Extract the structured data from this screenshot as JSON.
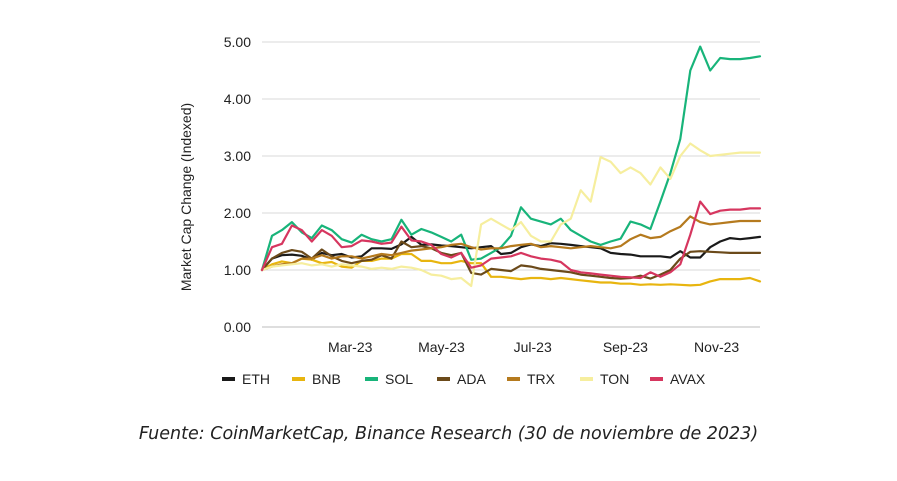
{
  "caption": "Fuente: CoinMarketCap, Binance Research (30 de noviembre de 2023)",
  "chart_data": {
    "type": "line",
    "ylabel": "Market Cap Change (Indexed)",
    "ylim": [
      0,
      5
    ],
    "yticks": [
      "0.00",
      "1.00",
      "2.00",
      "3.00",
      "4.00",
      "5.00"
    ],
    "x_start": "2023-01-01",
    "x_end": "2023-11-30",
    "x_period": "weekly",
    "xtick_labels": [
      {
        "date": "2023-03-01",
        "label": "Mar-23"
      },
      {
        "date": "2023-05-01",
        "label": "May-23"
      },
      {
        "date": "2023-07-01",
        "label": "Jul-23"
      },
      {
        "date": "2023-09-01",
        "label": "Sep-23"
      },
      {
        "date": "2023-11-01",
        "label": "Nov-23"
      }
    ],
    "grid": "horizontal",
    "legend": "bottom",
    "series": [
      {
        "name": "ETH",
        "color": "#1a1a1a",
        "values": [
          1.0,
          1.2,
          1.26,
          1.27,
          1.25,
          1.18,
          1.3,
          1.26,
          1.28,
          1.22,
          1.24,
          1.38,
          1.38,
          1.37,
          1.45,
          1.58,
          1.44,
          1.45,
          1.43,
          1.42,
          1.4,
          1.38,
          1.4,
          1.42,
          1.28,
          1.3,
          1.4,
          1.45,
          1.42,
          1.47,
          1.46,
          1.44,
          1.42,
          1.4,
          1.38,
          1.3,
          1.28,
          1.27,
          1.24,
          1.24,
          1.24,
          1.22,
          1.33,
          1.22,
          1.22,
          1.4,
          1.5,
          1.56,
          1.54,
          1.56,
          1.58
        ]
      },
      {
        "name": "BNB",
        "color": "#e8b50f",
        "values": [
          1.0,
          1.1,
          1.15,
          1.12,
          1.2,
          1.18,
          1.12,
          1.14,
          1.06,
          1.04,
          1.16,
          1.16,
          1.2,
          1.2,
          1.28,
          1.28,
          1.16,
          1.16,
          1.12,
          1.12,
          1.16,
          1.12,
          1.12,
          0.88,
          0.88,
          0.86,
          0.84,
          0.86,
          0.86,
          0.84,
          0.86,
          0.84,
          0.82,
          0.8,
          0.78,
          0.78,
          0.76,
          0.76,
          0.74,
          0.75,
          0.74,
          0.75,
          0.74,
          0.73,
          0.74,
          0.8,
          0.84,
          0.84,
          0.84,
          0.86,
          0.8
        ]
      },
      {
        "name": "SOL",
        "color": "#18b47a",
        "values": [
          1.0,
          1.6,
          1.7,
          1.84,
          1.66,
          1.56,
          1.78,
          1.7,
          1.54,
          1.48,
          1.62,
          1.54,
          1.5,
          1.54,
          1.88,
          1.62,
          1.72,
          1.66,
          1.58,
          1.5,
          1.62,
          1.18,
          1.2,
          1.3,
          1.4,
          1.6,
          2.1,
          1.9,
          1.85,
          1.8,
          1.9,
          1.7,
          1.6,
          1.5,
          1.44,
          1.5,
          1.55,
          1.85,
          1.8,
          1.72,
          2.2,
          2.7,
          3.3,
          4.5,
          4.92,
          4.5,
          4.72,
          4.7,
          4.7,
          4.72,
          4.75
        ]
      },
      {
        "name": "ADA",
        "color": "#6b4a1a",
        "values": [
          1.0,
          1.2,
          1.3,
          1.35,
          1.32,
          1.2,
          1.36,
          1.24,
          1.16,
          1.12,
          1.16,
          1.18,
          1.26,
          1.2,
          1.5,
          1.4,
          1.42,
          1.38,
          1.3,
          1.26,
          1.3,
          0.95,
          0.92,
          1.02,
          1.0,
          0.98,
          1.08,
          1.06,
          1.02,
          1.0,
          0.98,
          0.96,
          0.92,
          0.9,
          0.88,
          0.86,
          0.85,
          0.86,
          0.9,
          0.85,
          0.92,
          1.0,
          1.2,
          1.32,
          1.33,
          1.32,
          1.31,
          1.3,
          1.3,
          1.3,
          1.3
        ]
      },
      {
        "name": "TRX",
        "color": "#b57a1e",
        "values": [
          1.0,
          1.06,
          1.1,
          1.12,
          1.2,
          1.2,
          1.26,
          1.2,
          1.24,
          1.24,
          1.2,
          1.24,
          1.28,
          1.26,
          1.3,
          1.34,
          1.36,
          1.38,
          1.4,
          1.44,
          1.46,
          1.4,
          1.36,
          1.38,
          1.38,
          1.42,
          1.44,
          1.46,
          1.4,
          1.42,
          1.4,
          1.38,
          1.4,
          1.42,
          1.4,
          1.38,
          1.42,
          1.54,
          1.62,
          1.56,
          1.58,
          1.68,
          1.76,
          1.94,
          1.84,
          1.8,
          1.82,
          1.84,
          1.86,
          1.86,
          1.86
        ]
      },
      {
        "name": "TON",
        "color": "#f6ee9e",
        "values": [
          1.0,
          1.06,
          1.08,
          1.1,
          1.12,
          1.08,
          1.1,
          1.06,
          1.1,
          1.08,
          1.06,
          1.02,
          1.04,
          1.02,
          1.06,
          1.04,
          1.0,
          0.92,
          0.9,
          0.84,
          0.86,
          0.72,
          1.8,
          1.9,
          1.8,
          1.7,
          1.84,
          1.6,
          1.5,
          1.5,
          1.8,
          1.9,
          2.4,
          2.2,
          2.98,
          2.9,
          2.7,
          2.8,
          2.7,
          2.5,
          2.8,
          2.6,
          3.0,
          3.22,
          3.1,
          3.0,
          3.02,
          3.04,
          3.06,
          3.06,
          3.06
        ]
      },
      {
        "name": "AVAX",
        "color": "#d6365f",
        "values": [
          1.0,
          1.4,
          1.46,
          1.78,
          1.7,
          1.5,
          1.7,
          1.6,
          1.4,
          1.42,
          1.52,
          1.5,
          1.46,
          1.48,
          1.76,
          1.52,
          1.5,
          1.44,
          1.28,
          1.22,
          1.3,
          1.04,
          1.08,
          1.2,
          1.22,
          1.24,
          1.3,
          1.24,
          1.2,
          1.18,
          1.14,
          1.0,
          0.96,
          0.94,
          0.92,
          0.9,
          0.88,
          0.87,
          0.86,
          0.96,
          0.88,
          0.96,
          1.1,
          1.62,
          2.2,
          1.98,
          2.04,
          2.06,
          2.06,
          2.08,
          2.08
        ]
      }
    ]
  }
}
